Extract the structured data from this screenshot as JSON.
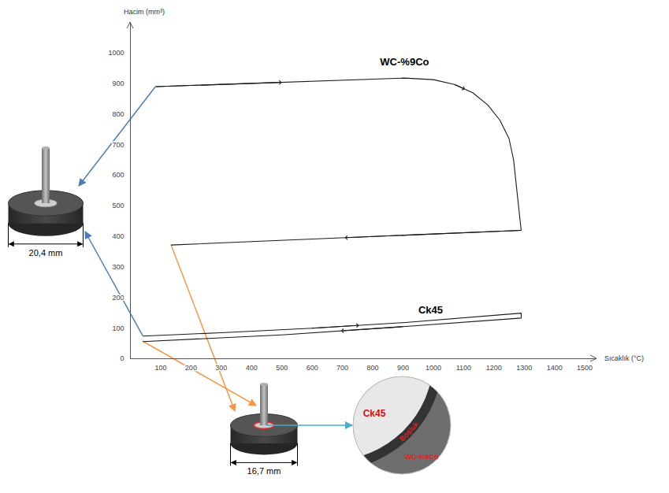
{
  "chart_data": {
    "type": "line",
    "x_label": "Sıcaklık (°C)",
    "y_label": "Hacim (mm³)",
    "xlim": [
      0,
      1540
    ],
    "xticks": [
      100,
      200,
      300,
      400,
      500,
      600,
      700,
      800,
      900,
      1000,
      1100,
      1200,
      1300,
      1400,
      1500
    ],
    "ylim": [
      0,
      1100
    ],
    "yticks": [
      0,
      100,
      200,
      300,
      400,
      500,
      600,
      700,
      800,
      900,
      1000
    ],
    "grid": false,
    "series": [
      {
        "name": "WC-%9Co",
        "color": "#1a1a1a",
        "marker": "arrow",
        "x": [
          85,
          905,
          1000,
          1070,
          1130,
          1180,
          1220,
          1250,
          1265,
          1278,
          1290,
          135
        ],
        "values": [
          890,
          918,
          913,
          897,
          870,
          830,
          780,
          720,
          650,
          530,
          420,
          372
        ]
      },
      {
        "name": "Ck45",
        "color": "#1a1a1a",
        "marker": "arrow",
        "x": [
          42,
          300,
          600,
          900,
          1290,
          1290,
          900,
          500,
          42
        ],
        "values": [
          74,
          85,
          100,
          118,
          149,
          133,
          105,
          78,
          56
        ]
      }
    ],
    "annotations": {
      "diameter_before": "20,4 mm",
      "diameter_after": "16,7 mm",
      "detail": {
        "inner": "Ck45",
        "gap": "Boşluk",
        "outer": "WC-%9Co"
      }
    }
  }
}
